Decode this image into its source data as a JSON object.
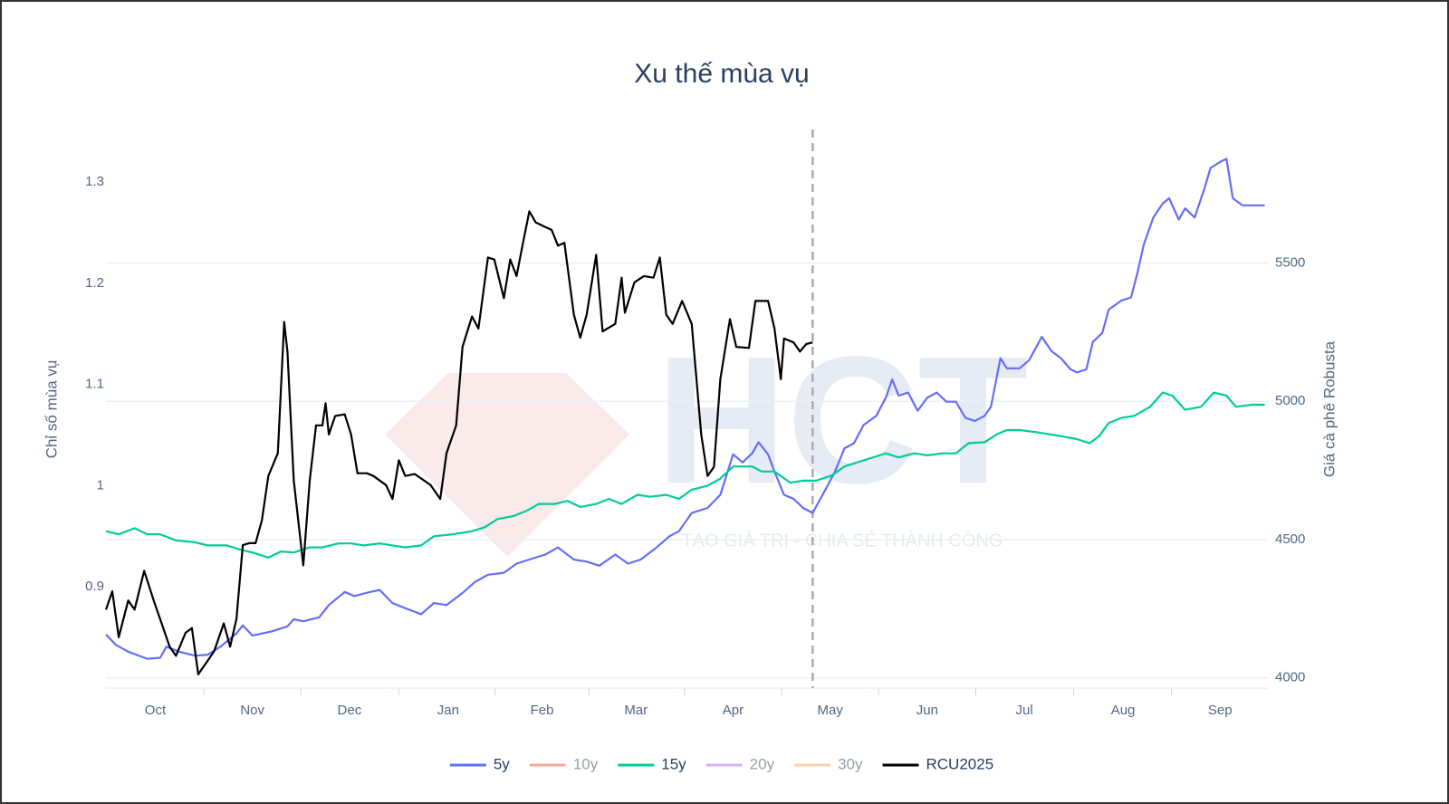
{
  "chart_data": {
    "type": "line",
    "title": "Xu thế mùa vụ",
    "ylabel": "Chỉ số mùa vụ",
    "y2label": "Giá cà phê Robusta",
    "xlim": [
      0,
      365
    ],
    "ylim": [
      0.8,
      1.352
    ],
    "y2lim": [
      3963,
      5983
    ],
    "xticks": [
      {
        "value": 15.5,
        "label": "Oct"
      },
      {
        "value": 46,
        "label": "Nov"
      },
      {
        "value": 76.5,
        "label": "Dec"
      },
      {
        "value": 107.5,
        "label": "Jan"
      },
      {
        "value": 137,
        "label": "Feb"
      },
      {
        "value": 166.5,
        "label": "Mar"
      },
      {
        "value": 197,
        "label": "Apr"
      },
      {
        "value": 227.5,
        "label": "May"
      },
      {
        "value": 258,
        "label": "Jun"
      },
      {
        "value": 288.5,
        "label": "Jul"
      },
      {
        "value": 319.5,
        "label": "Aug"
      },
      {
        "value": 350,
        "label": "Sep"
      }
    ],
    "yticks": [
      0.9,
      1,
      1.1,
      1.2,
      1.3
    ],
    "y2ticks": [
      4000,
      4500,
      5000,
      5500
    ],
    "grid": "y2",
    "marker_x": 222,
    "watermark": "HCT",
    "watermark_tagline": "TẠO GIÁ TRỊ - CHIA SẺ THÀNH CÔNG",
    "series": [
      {
        "name": "5y",
        "color": "#636efa",
        "visible": true,
        "x": [
          0,
          3,
          7,
          13,
          17,
          19,
          23,
          28,
          32,
          36,
          41,
          43,
          46,
          52,
          57,
          59,
          62,
          67,
          70,
          75,
          78,
          83,
          86,
          90,
          94,
          99,
          103,
          107,
          112,
          116,
          120,
          125,
          129,
          133,
          138,
          142,
          147,
          151,
          155,
          160,
          164,
          168,
          173,
          177,
          180,
          184,
          189,
          193,
          197,
          200,
          203,
          205,
          208,
          210,
          213,
          216,
          219,
          222,
          226,
          229,
          232,
          235,
          238,
          242,
          245,
          247,
          249,
          252,
          255,
          258,
          261,
          264,
          267,
          270,
          273,
          276,
          278,
          281,
          283,
          287,
          290,
          294,
          297,
          300,
          303,
          305,
          308,
          310,
          313,
          315,
          319,
          322,
          324,
          326,
          329,
          332,
          334,
          337,
          339,
          342,
          345,
          347,
          350,
          352,
          354,
          357,
          364
        ],
        "values": [
          0.853,
          0.843,
          0.836,
          0.829,
          0.83,
          0.841,
          0.836,
          0.832,
          0.833,
          0.841,
          0.854,
          0.862,
          0.852,
          0.856,
          0.861,
          0.868,
          0.866,
          0.87,
          0.882,
          0.895,
          0.891,
          0.895,
          0.897,
          0.884,
          0.879,
          0.873,
          0.884,
          0.882,
          0.894,
          0.905,
          0.912,
          0.914,
          0.923,
          0.927,
          0.932,
          0.939,
          0.927,
          0.925,
          0.921,
          0.932,
          0.923,
          0.927,
          0.939,
          0.95,
          0.955,
          0.973,
          0.978,
          0.991,
          1.031,
          1.023,
          1.032,
          1.043,
          1.031,
          1.014,
          0.991,
          0.987,
          0.978,
          0.973,
          0.996,
          1.014,
          1.037,
          1.042,
          1.06,
          1.069,
          1.087,
          1.105,
          1.089,
          1.092,
          1.074,
          1.087,
          1.092,
          1.083,
          1.083,
          1.067,
          1.064,
          1.069,
          1.078,
          1.126,
          1.116,
          1.116,
          1.124,
          1.147,
          1.133,
          1.126,
          1.115,
          1.112,
          1.115,
          1.142,
          1.151,
          1.174,
          1.183,
          1.186,
          1.21,
          1.238,
          1.265,
          1.279,
          1.284,
          1.263,
          1.274,
          1.265,
          1.293,
          1.314,
          1.32,
          1.323,
          1.284,
          1.277,
          1.277
        ]
      },
      {
        "name": "10y",
        "color": "#ef553b",
        "visible": false,
        "x": [],
        "values": []
      },
      {
        "name": "15y",
        "color": "#00cc96",
        "visible": true,
        "x": [
          0,
          4,
          9,
          13,
          17,
          22,
          28,
          32,
          38,
          42,
          46,
          51,
          55,
          59,
          64,
          68,
          73,
          77,
          81,
          86,
          90,
          94,
          99,
          103,
          109,
          115,
          119,
          123,
          128,
          132,
          136,
          141,
          145,
          149,
          154,
          158,
          162,
          167,
          171,
          176,
          180,
          184,
          189,
          193,
          197,
          200,
          203,
          206,
          210,
          215,
          219,
          223,
          228,
          232,
          236,
          241,
          245,
          249,
          254,
          258,
          263,
          267,
          271,
          276,
          280,
          283,
          287,
          292,
          296,
          300,
          305,
          309,
          312,
          315,
          319,
          323,
          328,
          332,
          335,
          339,
          344,
          348,
          352,
          355,
          360,
          364
        ],
        "values": [
          0.955,
          0.952,
          0.958,
          0.952,
          0.952,
          0.946,
          0.944,
          0.941,
          0.941,
          0.937,
          0.934,
          0.929,
          0.935,
          0.934,
          0.939,
          0.939,
          0.943,
          0.943,
          0.941,
          0.943,
          0.941,
          0.939,
          0.941,
          0.95,
          0.952,
          0.955,
          0.959,
          0.967,
          0.97,
          0.975,
          0.982,
          0.982,
          0.985,
          0.979,
          0.982,
          0.987,
          0.982,
          0.991,
          0.989,
          0.991,
          0.987,
          0.996,
          1.0,
          1.007,
          1.019,
          1.019,
          1.019,
          1.014,
          1.014,
          1.003,
          1.005,
          1.005,
          1.01,
          1.019,
          1.023,
          1.028,
          1.032,
          1.028,
          1.032,
          1.03,
          1.032,
          1.032,
          1.042,
          1.043,
          1.051,
          1.055,
          1.055,
          1.053,
          1.051,
          1.049,
          1.046,
          1.042,
          1.049,
          1.062,
          1.067,
          1.069,
          1.078,
          1.092,
          1.089,
          1.075,
          1.078,
          1.092,
          1.089,
          1.078,
          1.08,
          1.08
        ]
      },
      {
        "name": "20y",
        "color": "#ab63fa",
        "visible": false,
        "x": [],
        "values": []
      },
      {
        "name": "30y",
        "color": "#ffa15a",
        "visible": false,
        "x": [],
        "values": []
      },
      {
        "name": "RCU2025",
        "color": "#000000",
        "visible": true,
        "axis": "y2",
        "x": [
          0,
          2,
          4,
          7,
          9,
          12,
          15,
          17,
          20,
          22,
          25,
          27,
          29,
          32,
          34,
          37,
          39,
          41,
          43,
          45,
          47,
          49,
          51,
          54,
          56,
          57,
          59,
          62,
          64,
          66,
          68,
          69,
          70,
          72,
          75,
          77,
          79,
          82,
          84,
          88,
          90,
          92,
          94,
          97,
          100,
          102,
          105,
          107,
          110,
          112,
          115,
          117,
          120,
          122,
          125,
          127,
          129,
          131,
          133,
          135,
          138,
          140,
          142,
          144,
          147,
          149,
          151,
          154,
          156,
          160,
          162,
          163,
          166,
          169,
          172,
          174,
          176,
          178,
          181,
          184,
          187,
          189,
          191,
          193,
          196,
          198,
          202,
          204,
          208,
          210,
          212,
          213,
          216,
          218,
          220,
          222
        ],
        "values": [
          4247,
          4313,
          4147,
          4280,
          4247,
          4387,
          4280,
          4213,
          4113,
          4080,
          4163,
          4180,
          4013,
          4063,
          4097,
          4197,
          4113,
          4213,
          4480,
          4487,
          4487,
          4570,
          4730,
          4813,
          5287,
          5180,
          4713,
          4407,
          4713,
          4913,
          4913,
          4993,
          4880,
          4947,
          4953,
          4880,
          4740,
          4740,
          4730,
          4697,
          4647,
          4787,
          4730,
          4737,
          4713,
          4697,
          4647,
          4813,
          4913,
          5197,
          5307,
          5263,
          5520,
          5513,
          5373,
          5513,
          5453,
          5573,
          5687,
          5647,
          5630,
          5620,
          5563,
          5573,
          5313,
          5230,
          5313,
          5530,
          5253,
          5280,
          5447,
          5320,
          5430,
          5453,
          5447,
          5520,
          5313,
          5280,
          5363,
          5280,
          4880,
          4730,
          4763,
          5080,
          5297,
          5197,
          5193,
          5363,
          5363,
          5263,
          5080,
          5227,
          5213,
          5180,
          5207,
          5213
        ]
      }
    ]
  }
}
